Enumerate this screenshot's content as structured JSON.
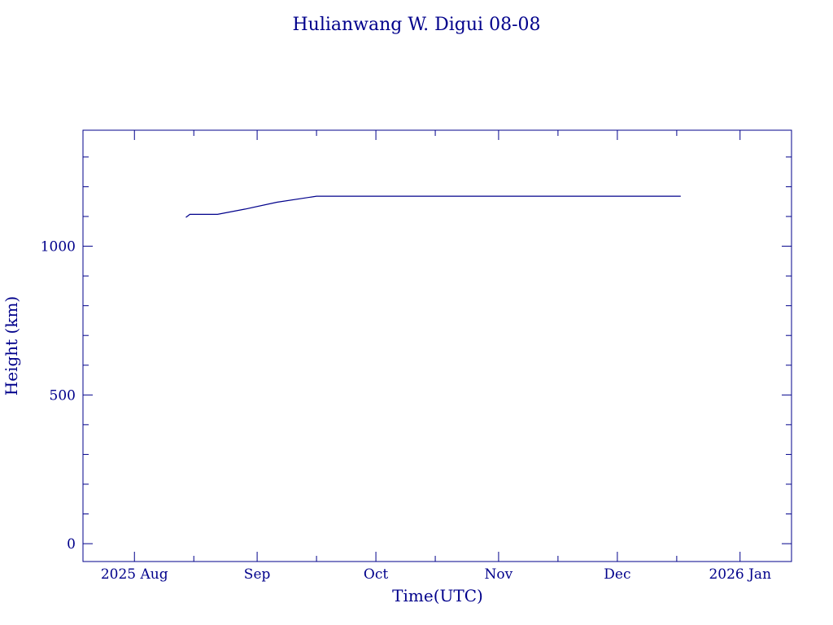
{
  "chart_data": {
    "type": "line",
    "title": "Hulianwang W. Digui 08-08",
    "xlabel": "Time(UTC)",
    "ylabel": "Height (km)",
    "x_tick_labels": [
      {
        "date": "2025-08-01",
        "label": "2025 Aug"
      },
      {
        "date": "2025-09-01",
        "label": "Sep"
      },
      {
        "date": "2025-10-01",
        "label": "Oct"
      },
      {
        "date": "2025-11-01",
        "label": "Nov"
      },
      {
        "date": "2025-12-01",
        "label": "Dec"
      },
      {
        "date": "2026-01-01",
        "label": "2026 Jan"
      }
    ],
    "y_ticks": [
      0,
      500,
      1000
    ],
    "xlim": [
      "2025-07-19",
      "2026-01-14"
    ],
    "ylim": [
      -60,
      1390
    ],
    "grid": false,
    "color": "#00008b",
    "series": [
      {
        "x": [
          "2025-08-14",
          "2025-08-15",
          "2025-08-22",
          "2025-08-29",
          "2025-09-06",
          "2025-09-16",
          "2025-12-17"
        ],
        "y": [
          1097,
          1107,
          1107,
          1125,
          1148,
          1168,
          1168
        ]
      }
    ]
  }
}
